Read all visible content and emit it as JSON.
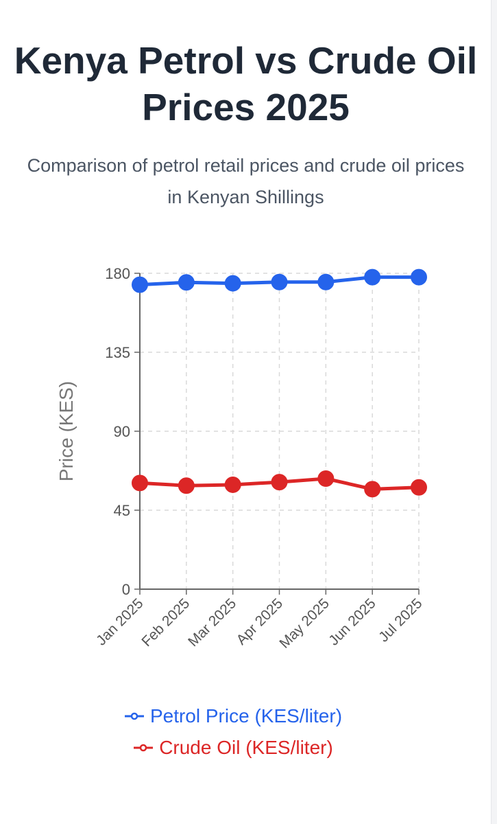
{
  "title": "Kenya Petrol vs Crude Oil Prices 2025",
  "subtitle": "Comparison of petrol retail prices and crude oil prices in Kenyan Shillings",
  "chart_data": {
    "type": "line",
    "x": [
      "Jan 2025",
      "Feb 2025",
      "Mar 2025",
      "Apr 2025",
      "May 2025",
      "Jun 2025",
      "Jul 2025"
    ],
    "ylabel": "Price (KES)",
    "xlabel": "",
    "ylim": [
      0,
      180
    ],
    "yticks": [
      0,
      45,
      90,
      135,
      180
    ],
    "grid": true,
    "legend_position": "bottom",
    "series": [
      {
        "name": "Petrol Price (KES/liter)",
        "color": "#2563eb",
        "values": [
          173.5,
          174.8,
          174.3,
          175.0,
          175.0,
          177.8,
          177.8
        ]
      },
      {
        "name": "Crude Oil (KES/liter)",
        "color": "#dc2626",
        "values": [
          60.5,
          59.0,
          59.5,
          61.0,
          63.0,
          57.0,
          58.0
        ]
      }
    ]
  }
}
